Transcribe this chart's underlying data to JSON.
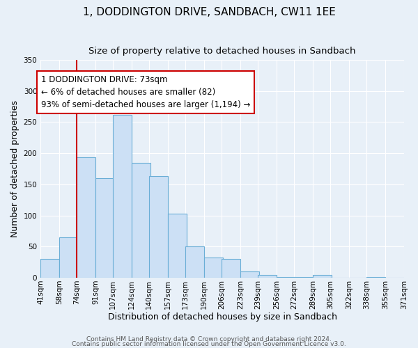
{
  "title": "1, DODDINGTON DRIVE, SANDBACH, CW11 1EE",
  "subtitle": "Size of property relative to detached houses in Sandbach",
  "xlabel": "Distribution of detached houses by size in Sandbach",
  "ylabel": "Number of detached properties",
  "bar_left_edges": [
    41,
    58,
    74,
    91,
    107,
    124,
    140,
    157,
    173,
    190,
    206,
    223,
    239,
    256,
    272,
    289,
    305,
    322,
    338,
    355
  ],
  "bar_heights": [
    30,
    65,
    193,
    160,
    261,
    184,
    163,
    103,
    50,
    32,
    30,
    10,
    5,
    1,
    1,
    5,
    0,
    0,
    1,
    0
  ],
  "bin_width": 17,
  "bar_color": "#cce0f5",
  "bar_edge_color": "#6aaed6",
  "tick_labels": [
    "41sqm",
    "58sqm",
    "74sqm",
    "91sqm",
    "107sqm",
    "124sqm",
    "140sqm",
    "157sqm",
    "173sqm",
    "190sqm",
    "206sqm",
    "223sqm",
    "239sqm",
    "256sqm",
    "272sqm",
    "289sqm",
    "305sqm",
    "322sqm",
    "338sqm",
    "355sqm",
    "371sqm"
  ],
  "vline_x": 74,
  "vline_color": "#cc0000",
  "annotation_text": "1 DODDINGTON DRIVE: 73sqm\n← 6% of detached houses are smaller (82)\n93% of semi-detached houses are larger (1,194) →",
  "annotation_box_color": "#ffffff",
  "annotation_box_edge": "#cc0000",
  "ylim": [
    0,
    350
  ],
  "yticks": [
    0,
    50,
    100,
    150,
    200,
    250,
    300,
    350
  ],
  "background_color": "#e8f0f8",
  "plot_bg_color": "#e8f0f8",
  "footer_line1": "Contains HM Land Registry data © Crown copyright and database right 2024.",
  "footer_line2": "Contains public sector information licensed under the Open Government Licence v3.0.",
  "title_fontsize": 11,
  "subtitle_fontsize": 9.5,
  "axis_label_fontsize": 9,
  "tick_fontsize": 7.5,
  "annotation_fontsize": 8.5,
  "footer_fontsize": 6.5
}
